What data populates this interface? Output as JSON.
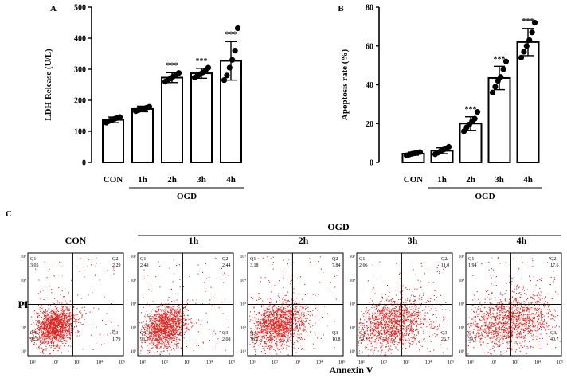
{
  "chart_data": [
    {
      "panel": "A",
      "type": "bar",
      "ylabel": "LDH Release (U/L)",
      "xlabel": "",
      "ylim": [
        0,
        500
      ],
      "yticks": [
        0,
        100,
        200,
        300,
        400,
        500
      ],
      "categories": [
        "CON",
        "1h",
        "2h",
        "3h",
        "4h"
      ],
      "values": [
        137,
        172,
        273,
        287,
        327
      ],
      "errors": [
        9,
        9,
        16,
        16,
        62
      ],
      "points": [
        [
          128,
          133,
          138,
          140,
          143,
          146
        ],
        [
          165,
          168,
          171,
          173,
          176,
          179
        ],
        [
          260,
          265,
          270,
          277,
          283,
          288
        ],
        [
          273,
          278,
          284,
          290,
          296,
          305
        ],
        [
          265,
          280,
          305,
          330,
          360,
          432
        ]
      ],
      "significance": [
        "",
        "",
        "***",
        "***",
        "***"
      ],
      "group_label": "OGD"
    },
    {
      "panel": "B",
      "type": "bar",
      "ylabel": "Apoptosis rate (%)",
      "xlabel": "",
      "ylim": [
        0,
        80
      ],
      "yticks": [
        0,
        20,
        40,
        60,
        80
      ],
      "categories": [
        "CON",
        "1h",
        "2h",
        "3h",
        "4h"
      ],
      "values": [
        4.5,
        6.0,
        20.0,
        43.5,
        62.0
      ],
      "errors": [
        0.8,
        1.5,
        3.5,
        6.0,
        7.0
      ],
      "points": [
        [
          3.6,
          4.0,
          4.4,
          4.7,
          5.0,
          5.3
        ],
        [
          4.2,
          5.0,
          5.8,
          6.5,
          7.0,
          8.0
        ],
        [
          16.0,
          18.0,
          19.5,
          21.0,
          22.5,
          26.0
        ],
        [
          36.0,
          39.0,
          42.0,
          44.0,
          48.0,
          52.0
        ],
        [
          54.0,
          57.0,
          60.0,
          63.0,
          67.0,
          72.0
        ]
      ],
      "significance": [
        "",
        "",
        "***",
        "***",
        "***"
      ],
      "group_label": "OGD"
    },
    {
      "panel": "C",
      "type": "scatter",
      "subtype": "flow-cytometry-quadrant",
      "xlabel": "Annexin V",
      "ylabel": "PI",
      "group_label": "OGD",
      "tick_labels": [
        "10¹",
        "10²",
        "10³",
        "10⁴",
        "10⁵"
      ],
      "plots": [
        {
          "title": "CON",
          "Q1": "3.05",
          "Q2": "2.29",
          "Q3": "1.79",
          "Q4": "92.9"
        },
        {
          "title": "1h",
          "Q1": "2.43",
          "Q2": "2.44",
          "Q3": "2.08",
          "Q4": "93.1"
        },
        {
          "title": "2h",
          "Q1": "3.18",
          "Q2": "7.84",
          "Q3": "10.8",
          "Q4": "78.2"
        },
        {
          "title": "3h",
          "Q1": "2.66",
          "Q2": "11.0",
          "Q3": "26.7",
          "Q4": "59.7"
        },
        {
          "title": "4h",
          "Q1": "1.94",
          "Q2": "17.6",
          "Q3": "40.7",
          "Q4": "39.7"
        }
      ]
    }
  ],
  "labels": {
    "quadrant_names": [
      "Q1",
      "Q2",
      "Q3",
      "Q4"
    ]
  },
  "colors": {
    "bar_fill": "#ffffff",
    "ink": "#000000",
    "dots": "#e0201c"
  }
}
